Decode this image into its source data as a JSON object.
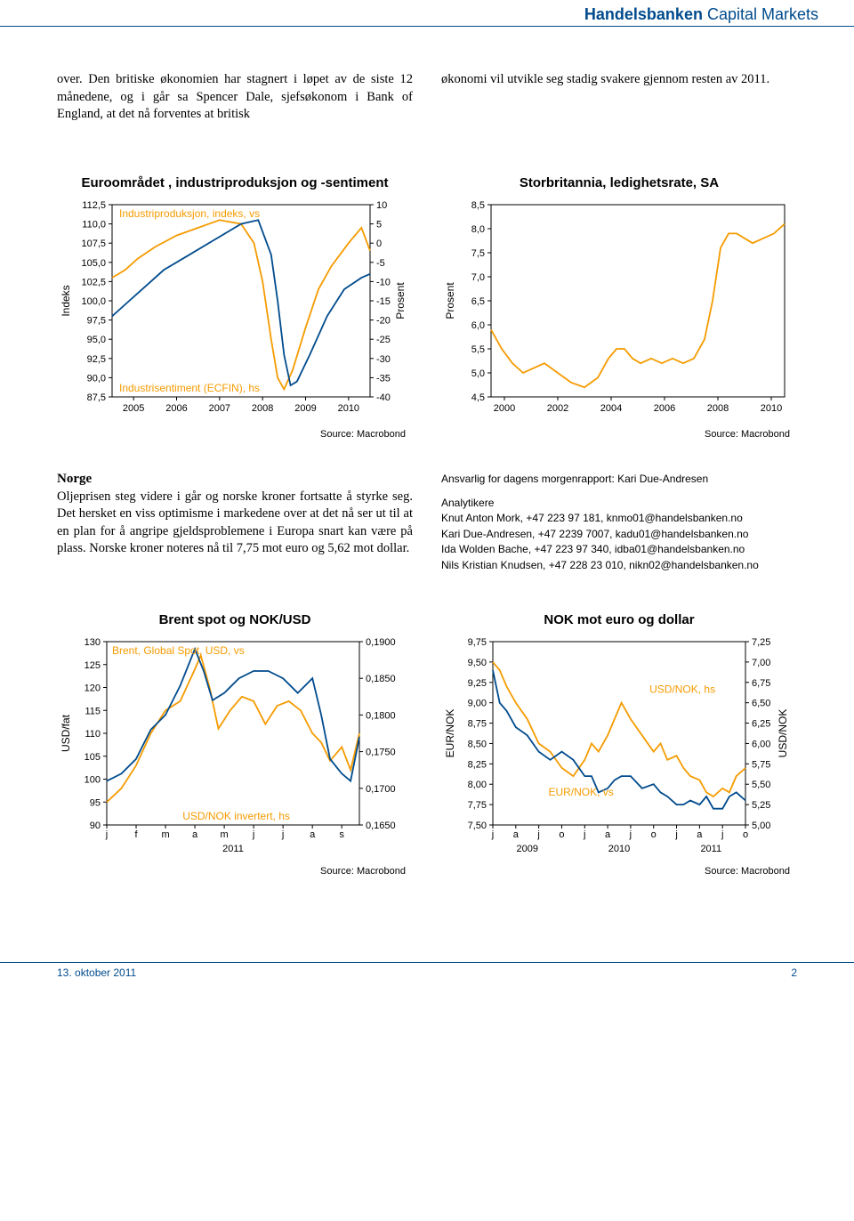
{
  "header": {
    "brand_bold": "Handelsbanken",
    "brand_light": " Capital Markets"
  },
  "block1": {
    "para_left": "over. Den britiske økonomien har stagnert i løpet av de siste 12 månedene, og i går sa Spencer Dale, sjefsøkonom i Bank of England, at det nå forventes at britisk",
    "para_right": "økonomi vil utvikle seg stadig svakere gjennom resten av 2011."
  },
  "chart1": {
    "title": "Euroområdet , industriproduksjon og -sentiment",
    "type": "dual-axis-line",
    "series1_label": "Industriproduksjon, indeks, vs",
    "series2_label": "Industrisentiment (ECFIN), hs",
    "x_years": [
      "2005",
      "2006",
      "2007",
      "2008",
      "2009",
      "2010"
    ],
    "left_axis_label": "Indeks",
    "right_axis_label": "Prosent",
    "left_ticks": [
      "112,5",
      "110,0",
      "107,5",
      "105,0",
      "102,5",
      "100,0",
      "97,5",
      "95,0",
      "92,5",
      "90,0",
      "87,5"
    ],
    "left_min": 87.5,
    "left_max": 112.5,
    "right_ticks": [
      "10",
      "5",
      "0",
      "-5",
      "-10",
      "-15",
      "-20",
      "-25",
      "-30",
      "-35",
      "-40"
    ],
    "right_min": -40,
    "right_max": 10,
    "line_blue_color": "#004b8d",
    "line_orange_color": "#f59b00",
    "source": "Source: Macrobond",
    "blue_points": [
      [
        0,
        98
      ],
      [
        0.4,
        100
      ],
      [
        0.8,
        102
      ],
      [
        1.2,
        104
      ],
      [
        1.8,
        106
      ],
      [
        2.4,
        108
      ],
      [
        3.0,
        110
      ],
      [
        3.4,
        110.5
      ],
      [
        3.7,
        106
      ],
      [
        3.85,
        100
      ],
      [
        4.0,
        93
      ],
      [
        4.15,
        89
      ],
      [
        4.3,
        89.5
      ],
      [
        4.6,
        93
      ],
      [
        5.0,
        98
      ],
      [
        5.4,
        101.5
      ],
      [
        5.8,
        103
      ],
      [
        6.0,
        103.5
      ]
    ],
    "orange_points": [
      [
        0,
        -9
      ],
      [
        0.3,
        -7
      ],
      [
        0.6,
        -4
      ],
      [
        1.0,
        -1
      ],
      [
        1.5,
        2
      ],
      [
        2.0,
        4
      ],
      [
        2.5,
        6
      ],
      [
        3.0,
        5
      ],
      [
        3.3,
        0
      ],
      [
        3.5,
        -10
      ],
      [
        3.7,
        -25
      ],
      [
        3.85,
        -35
      ],
      [
        4.0,
        -38
      ],
      [
        4.2,
        -33
      ],
      [
        4.5,
        -22
      ],
      [
        4.8,
        -12
      ],
      [
        5.1,
        -6
      ],
      [
        5.5,
        0
      ],
      [
        5.8,
        4
      ],
      [
        6.0,
        -2
      ]
    ]
  },
  "chart2": {
    "title": "Storbritannia, ledighetsrate, SA",
    "type": "line",
    "axis_label": "Prosent",
    "y_ticks": [
      "8,5",
      "8,0",
      "7,5",
      "7,0",
      "6,5",
      "6,0",
      "5,5",
      "5,0",
      "4,5"
    ],
    "y_min": 4.5,
    "y_max": 8.5,
    "x_years": [
      "2000",
      "2002",
      "2004",
      "2006",
      "2008",
      "2010"
    ],
    "line_color": "#f59b00",
    "source": "Source: Macrobond",
    "points": [
      [
        0,
        5.9
      ],
      [
        0.4,
        5.5
      ],
      [
        0.8,
        5.2
      ],
      [
        1.2,
        5.0
      ],
      [
        1.6,
        5.1
      ],
      [
        2.0,
        5.2
      ],
      [
        2.5,
        5.0
      ],
      [
        3.0,
        4.8
      ],
      [
        3.5,
        4.7
      ],
      [
        4.0,
        4.9
      ],
      [
        4.4,
        5.3
      ],
      [
        4.7,
        5.5
      ],
      [
        5.0,
        5.5
      ],
      [
        5.3,
        5.3
      ],
      [
        5.6,
        5.2
      ],
      [
        6.0,
        5.3
      ],
      [
        6.4,
        5.2
      ],
      [
        6.8,
        5.3
      ],
      [
        7.2,
        5.2
      ],
      [
        7.6,
        5.3
      ],
      [
        8.0,
        5.7
      ],
      [
        8.3,
        6.5
      ],
      [
        8.6,
        7.6
      ],
      [
        8.9,
        7.9
      ],
      [
        9.2,
        7.9
      ],
      [
        9.5,
        7.8
      ],
      [
        9.8,
        7.7
      ],
      [
        10.2,
        7.8
      ],
      [
        10.6,
        7.9
      ],
      [
        11.0,
        8.1
      ]
    ]
  },
  "block2": {
    "heading": "Norge",
    "para_left": "Oljeprisen steg videre i går og norske kroner fortsatte å styrke seg. Det hersket en viss optimisme i markedene over at det nå ser ut til at en plan for å angripe gjeldsproblemene i Europa snart kan være på plass. Norske kroner noteres nå til 7,75 mot euro og 5,62 mot dollar.",
    "contact_label": "Ansvarlig for dagens morgenrapport: Kari Due-Andresen",
    "analytikere_label": "Analytikere",
    "contacts": [
      "Knut Anton Mork, +47 223 97 181, knmo01@handelsbanken.no",
      "Kari Due-Andresen, +47 2239 7007, kadu01@handelsbanken.no",
      "Ida Wolden Bache, +47 223 97 340, idba01@handelsbanken.no",
      "Nils Kristian Knudsen, +47 228 23 010, nikn02@handelsbanken.no"
    ]
  },
  "chart3": {
    "title": "Brent spot og NOK/USD",
    "type": "dual-axis-line",
    "series1_label": "Brent, Global Spot, USD, vs",
    "series2_label": "USD/NOK invertert, hs",
    "x_labels": [
      "j",
      "f",
      "m",
      "a",
      "m",
      "j",
      "j",
      "a",
      "s"
    ],
    "x_year": "2011",
    "left_axis_label": "USD/fat",
    "left_ticks": [
      "130",
      "125",
      "120",
      "115",
      "110",
      "105",
      "100",
      "95",
      "90"
    ],
    "left_min": 90,
    "left_max": 130,
    "right_ticks": [
      "0,1900",
      "0,1850",
      "0,1800",
      "0,1750",
      "0,1700",
      "0,1650"
    ],
    "right_min": 0.165,
    "right_max": 0.19,
    "line_blue_color": "#004b8d",
    "line_orange_color": "#f59b00",
    "source": "Source: Macrobond",
    "blue_points": [
      [
        0,
        0.171
      ],
      [
        0.5,
        0.172
      ],
      [
        1,
        0.174
      ],
      [
        1.5,
        0.178
      ],
      [
        2,
        0.18
      ],
      [
        2.5,
        0.184
      ],
      [
        3,
        0.189
      ],
      [
        3.3,
        0.186
      ],
      [
        3.6,
        0.182
      ],
      [
        4,
        0.183
      ],
      [
        4.5,
        0.185
      ],
      [
        5,
        0.186
      ],
      [
        5.5,
        0.186
      ],
      [
        6,
        0.185
      ],
      [
        6.5,
        0.183
      ],
      [
        7,
        0.185
      ],
      [
        7.3,
        0.18
      ],
      [
        7.6,
        0.174
      ],
      [
        8,
        0.172
      ],
      [
        8.3,
        0.171
      ],
      [
        8.6,
        0.177
      ]
    ],
    "orange_points": [
      [
        0,
        95
      ],
      [
        0.5,
        98
      ],
      [
        1,
        103
      ],
      [
        1.5,
        110
      ],
      [
        2,
        115
      ],
      [
        2.5,
        117
      ],
      [
        3,
        124
      ],
      [
        3.2,
        127
      ],
      [
        3.5,
        120
      ],
      [
        3.8,
        111
      ],
      [
        4.2,
        115
      ],
      [
        4.6,
        118
      ],
      [
        5,
        117
      ],
      [
        5.4,
        112
      ],
      [
        5.8,
        116
      ],
      [
        6.2,
        117
      ],
      [
        6.6,
        115
      ],
      [
        7,
        110
      ],
      [
        7.3,
        108
      ],
      [
        7.6,
        104
      ],
      [
        8,
        107
      ],
      [
        8.3,
        102
      ],
      [
        8.6,
        110
      ]
    ]
  },
  "chart4": {
    "title": "NOK mot euro og dollar",
    "type": "dual-axis-line",
    "series1_label": "EUR/NOK, vs",
    "series2_label": "USD/NOK, hs",
    "x_labels": [
      "j",
      "a",
      "j",
      "o",
      "j",
      "a",
      "j",
      "o",
      "j",
      "a",
      "j",
      "o"
    ],
    "x_years": [
      "2009",
      "2010",
      "2011"
    ],
    "left_axis_label": "EUR/NOK",
    "right_axis_label": "USD/NOK",
    "left_ticks": [
      "9,75",
      "9,50",
      "9,25",
      "9,00",
      "8,75",
      "8,50",
      "8,25",
      "8,00",
      "7,75",
      "7,50"
    ],
    "left_min": 7.5,
    "left_max": 9.75,
    "right_ticks": [
      "7,25",
      "7,00",
      "6,75",
      "6,50",
      "6,25",
      "6,00",
      "5,75",
      "5,50",
      "5,25",
      "5,00"
    ],
    "right_min": 5.0,
    "right_max": 7.25,
    "line_blue_color": "#004b8d",
    "line_orange_color": "#f59b00",
    "source": "Source: Macrobond",
    "blue_points": [
      [
        0,
        9.4
      ],
      [
        0.3,
        9.0
      ],
      [
        0.6,
        8.9
      ],
      [
        1,
        8.7
      ],
      [
        1.5,
        8.6
      ],
      [
        2,
        8.4
      ],
      [
        2.5,
        8.3
      ],
      [
        3,
        8.4
      ],
      [
        3.5,
        8.3
      ],
      [
        4,
        8.1
      ],
      [
        4.3,
        8.1
      ],
      [
        4.6,
        7.9
      ],
      [
        5,
        7.95
      ],
      [
        5.3,
        8.05
      ],
      [
        5.6,
        8.1
      ],
      [
        6,
        8.1
      ],
      [
        6.5,
        7.95
      ],
      [
        7,
        8.0
      ],
      [
        7.3,
        7.9
      ],
      [
        7.6,
        7.85
      ],
      [
        8,
        7.75
      ],
      [
        8.3,
        7.75
      ],
      [
        8.6,
        7.8
      ],
      [
        9,
        7.75
      ],
      [
        9.3,
        7.85
      ],
      [
        9.6,
        7.7
      ],
      [
        10,
        7.7
      ],
      [
        10.3,
        7.85
      ],
      [
        10.6,
        7.9
      ],
      [
        11,
        7.8
      ]
    ],
    "orange_points": [
      [
        0,
        7.0
      ],
      [
        0.3,
        6.9
      ],
      [
        0.6,
        6.7
      ],
      [
        1,
        6.5
      ],
      [
        1.5,
        6.3
      ],
      [
        2,
        6.0
      ],
      [
        2.5,
        5.9
      ],
      [
        3,
        5.7
      ],
      [
        3.5,
        5.6
      ],
      [
        4,
        5.8
      ],
      [
        4.3,
        6.0
      ],
      [
        4.6,
        5.9
      ],
      [
        5,
        6.1
      ],
      [
        5.3,
        6.3
      ],
      [
        5.6,
        6.5
      ],
      [
        6,
        6.3
      ],
      [
        6.5,
        6.1
      ],
      [
        7,
        5.9
      ],
      [
        7.3,
        6.0
      ],
      [
        7.6,
        5.8
      ],
      [
        8,
        5.85
      ],
      [
        8.3,
        5.7
      ],
      [
        8.6,
        5.6
      ],
      [
        9,
        5.55
      ],
      [
        9.3,
        5.4
      ],
      [
        9.6,
        5.35
      ],
      [
        10,
        5.45
      ],
      [
        10.3,
        5.4
      ],
      [
        10.6,
        5.6
      ],
      [
        11,
        5.7
      ]
    ]
  },
  "footer": {
    "date": "13. oktober 2011",
    "page": "2"
  }
}
